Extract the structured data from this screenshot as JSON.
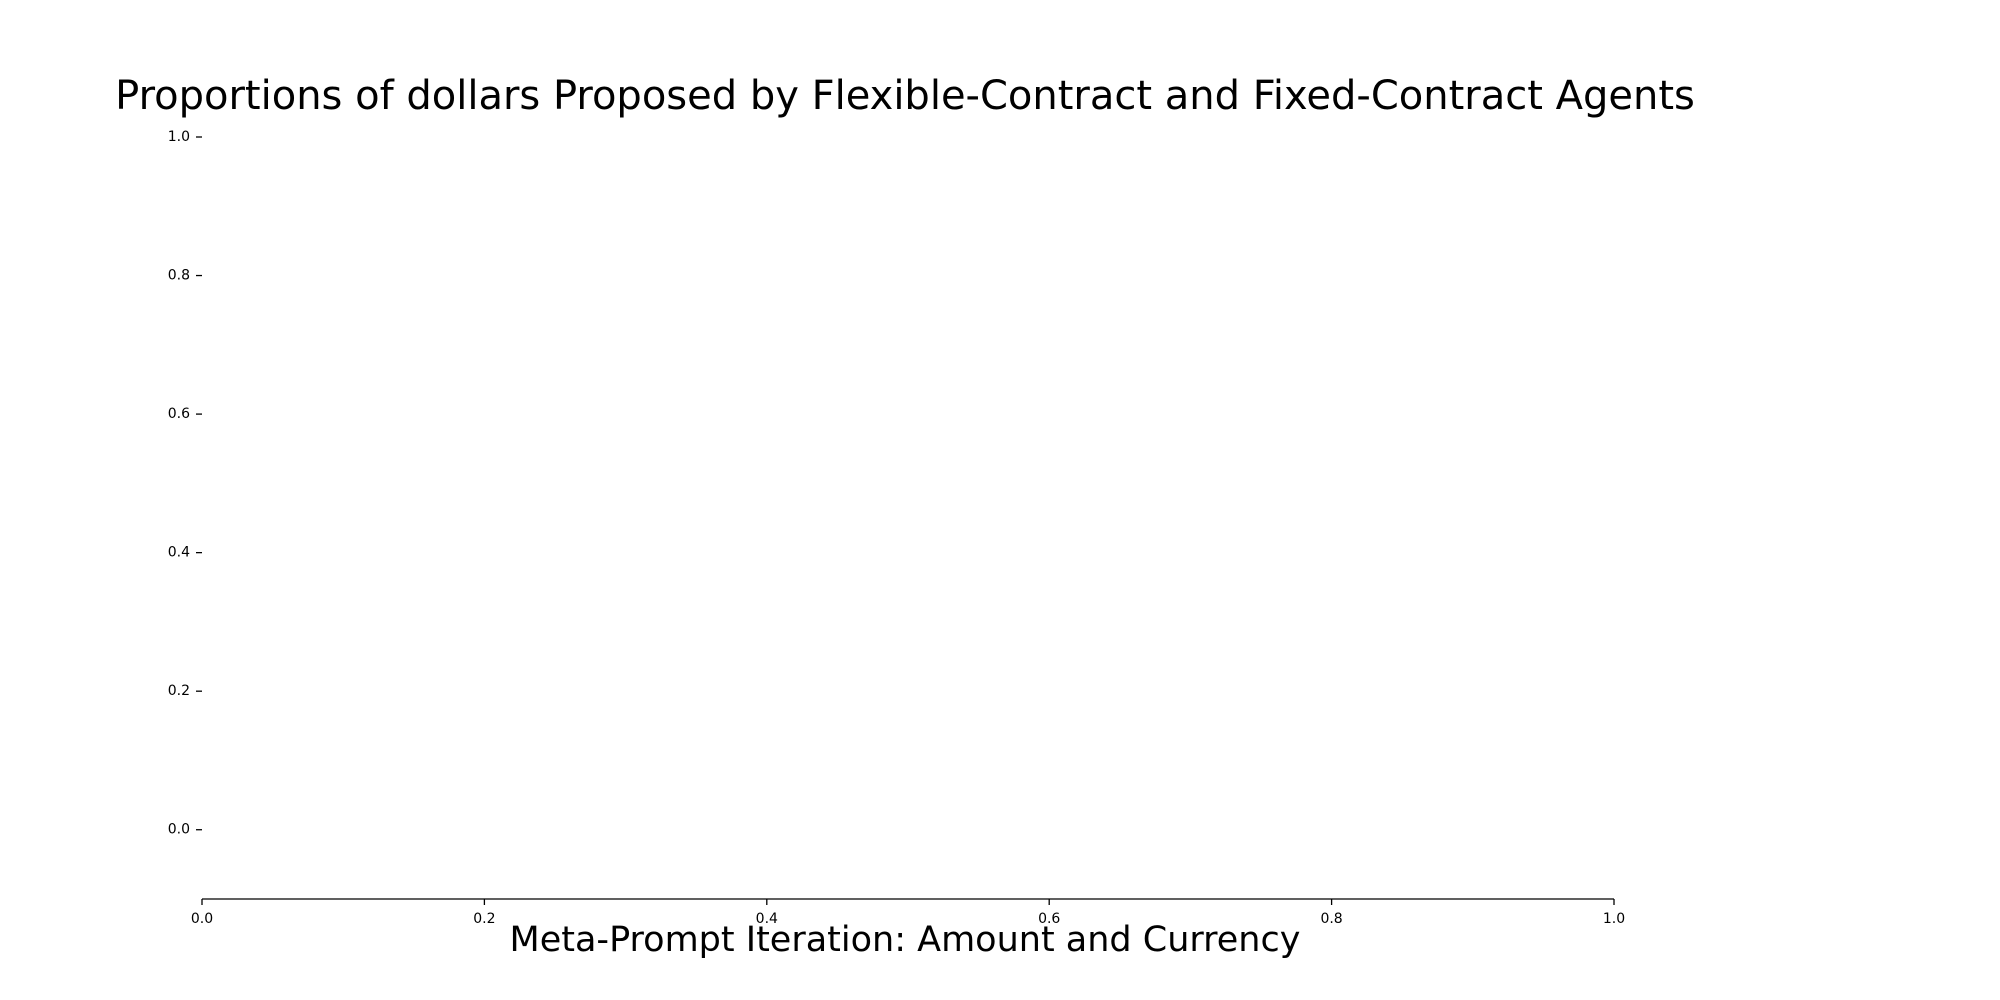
{
  "chart_data": {
    "type": "bar",
    "title": "Proportions of dollars Proposed by Flexible-Contract and Fixed-Contract Agents",
    "xlabel": "Meta-Prompt Iteration: Amount and Currency",
    "ylabel": "",
    "xlim": [
      0.0,
      1.0
    ],
    "ylim": [
      -0.1,
      1.0
    ],
    "xticks": [
      0.0,
      0.2,
      0.4,
      0.6,
      0.8,
      1.0
    ],
    "xtick_labels": [
      "0.0",
      "0.2",
      "0.4",
      "0.6",
      "0.8",
      "1.0"
    ],
    "yticks": [
      0.0,
      0.2,
      0.4,
      0.6,
      0.8,
      1.0
    ],
    "ytick_labels": [
      "0.0",
      "0.2",
      "0.4",
      "0.6",
      "0.8",
      "1.0"
    ],
    "series": [],
    "grid": false,
    "legend": "none",
    "spines": {
      "bottom": true,
      "left": false,
      "top": false,
      "right": false
    },
    "colors": {
      "axis": "#000000",
      "text": "#000000",
      "background": "#ffffff"
    }
  }
}
